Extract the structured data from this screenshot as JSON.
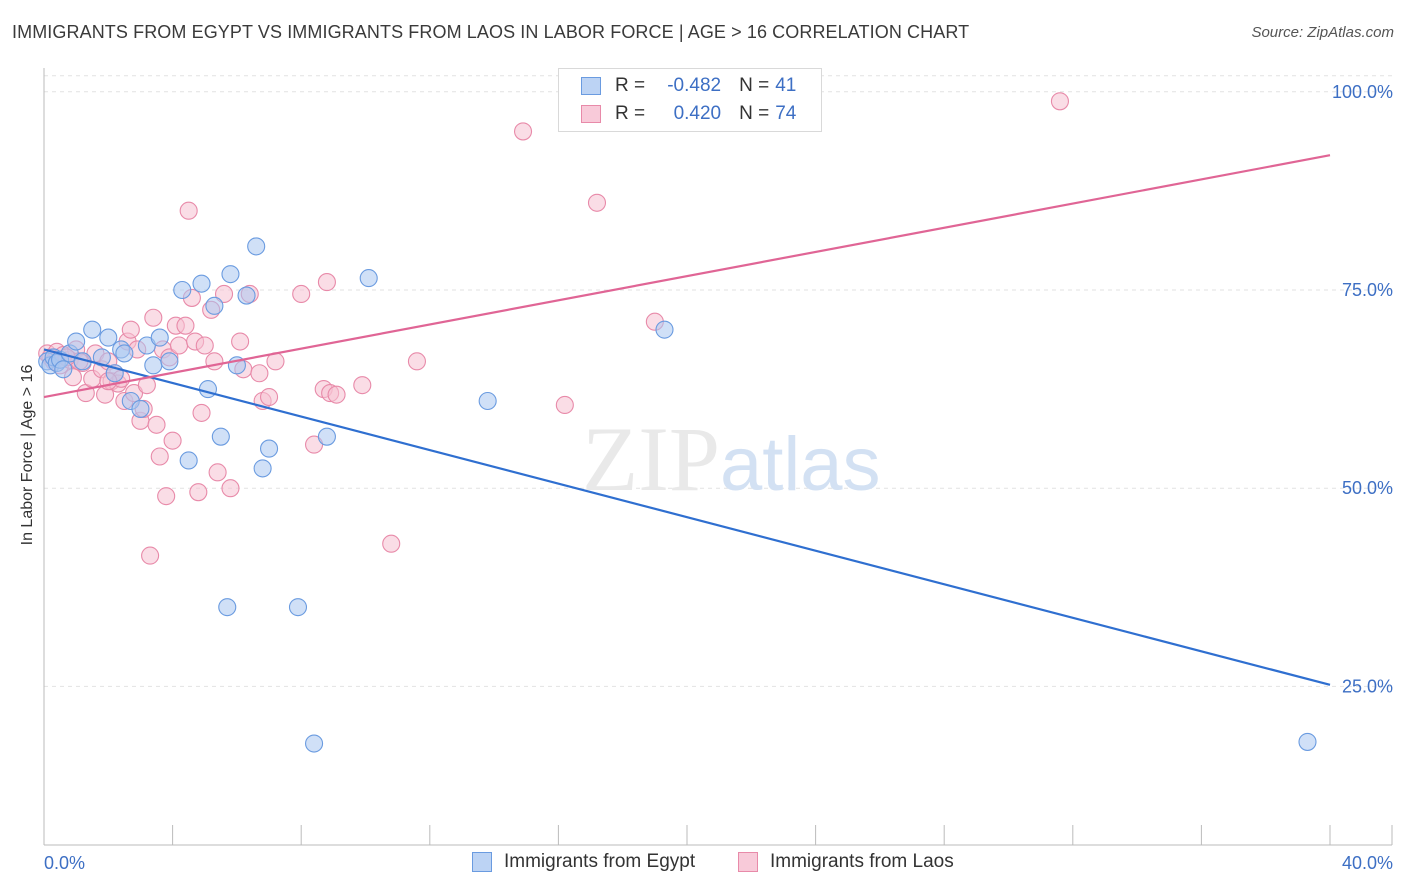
{
  "chart_data": {
    "type": "scatter",
    "title": "IMMIGRANTS FROM EGYPT VS IMMIGRANTS FROM LAOS IN LABOR FORCE | AGE > 16 CORRELATION CHART",
    "source": "Source: ZipAtlas.com",
    "ylabel": "In Labor Force | Age > 16",
    "xlim": [
      0,
      40
    ],
    "ylim": [
      5,
      103
    ],
    "x_tick_labels": [
      "0.0%",
      "40.0%"
    ],
    "y_ticks": [
      25,
      50,
      75,
      100
    ],
    "y_tick_labels": [
      "25.0%",
      "50.0%",
      "75.0%",
      "100.0%"
    ],
    "grid": true,
    "watermark": "ZIPatlas",
    "legend": {
      "egypt": {
        "r_label": "R =",
        "r_value": "-0.482",
        "n_label": "N =",
        "n_value": "41"
      },
      "laos": {
        "r_label": "R =",
        "r_value": "0.420",
        "n_label": "N =",
        "n_value": "74"
      }
    },
    "series": [
      {
        "name": "Immigrants from Egypt",
        "color": "#6a9be0",
        "fill": "#a9c6f0",
        "trend": {
          "x": [
            0,
            40
          ],
          "y": [
            67.5,
            25.2
          ],
          "color": "#2f6fd0"
        },
        "points": [
          [
            0.1,
            66.0
          ],
          [
            0.2,
            65.5
          ],
          [
            0.3,
            66.5
          ],
          [
            0.4,
            65.8
          ],
          [
            0.5,
            66.2
          ],
          [
            0.6,
            65.0
          ],
          [
            0.8,
            67.0
          ],
          [
            1.0,
            68.5
          ],
          [
            1.2,
            66.0
          ],
          [
            1.5,
            70.0
          ],
          [
            1.8,
            66.5
          ],
          [
            2.0,
            69.0
          ],
          [
            2.2,
            64.5
          ],
          [
            2.4,
            67.5
          ],
          [
            2.5,
            67.0
          ],
          [
            2.7,
            61.0
          ],
          [
            3.0,
            60.0
          ],
          [
            3.2,
            68.0
          ],
          [
            3.4,
            65.5
          ],
          [
            3.6,
            69.0
          ],
          [
            3.9,
            66.0
          ],
          [
            4.3,
            75.0
          ],
          [
            4.5,
            53.5
          ],
          [
            4.9,
            75.8
          ],
          [
            5.1,
            62.5
          ],
          [
            5.3,
            73.0
          ],
          [
            5.5,
            56.5
          ],
          [
            5.7,
            35.0
          ],
          [
            5.8,
            77.0
          ],
          [
            6.0,
            65.5
          ],
          [
            6.3,
            74.3
          ],
          [
            6.6,
            80.5
          ],
          [
            6.8,
            52.5
          ],
          [
            7.0,
            55.0
          ],
          [
            7.9,
            35.0
          ],
          [
            8.4,
            17.8
          ],
          [
            8.8,
            56.5
          ],
          [
            10.1,
            76.5
          ],
          [
            13.8,
            61.0
          ],
          [
            19.3,
            70.0
          ],
          [
            39.3,
            18.0
          ]
        ]
      },
      {
        "name": "Immigrants from Laos",
        "color": "#e88aa9",
        "fill": "#f6c1d2",
        "trend": {
          "x": [
            0,
            40
          ],
          "y": [
            61.5,
            92.0
          ],
          "color": "#e06595"
        },
        "points": [
          [
            0.1,
            67.0
          ],
          [
            0.2,
            66.5
          ],
          [
            0.3,
            66.0
          ],
          [
            0.4,
            67.2
          ],
          [
            0.5,
            65.5
          ],
          [
            0.6,
            66.8
          ],
          [
            0.8,
            66.2
          ],
          [
            0.9,
            64.0
          ],
          [
            1.0,
            67.5
          ],
          [
            1.2,
            65.8
          ],
          [
            1.3,
            62.0
          ],
          [
            1.5,
            63.8
          ],
          [
            1.6,
            67.0
          ],
          [
            1.8,
            65.0
          ],
          [
            1.9,
            61.8
          ],
          [
            2.0,
            66.0
          ],
          [
            2.1,
            63.5
          ],
          [
            2.2,
            64.5
          ],
          [
            2.3,
            63.2
          ],
          [
            2.4,
            63.8
          ],
          [
            2.5,
            61.0
          ],
          [
            2.6,
            68.5
          ],
          [
            2.7,
            70.0
          ],
          [
            2.8,
            62.0
          ],
          [
            2.9,
            67.5
          ],
          [
            3.0,
            58.5
          ],
          [
            3.1,
            60.0
          ],
          [
            3.2,
            63.0
          ],
          [
            3.3,
            41.5
          ],
          [
            3.4,
            71.5
          ],
          [
            3.5,
            58.0
          ],
          [
            3.6,
            54.0
          ],
          [
            3.7,
            67.5
          ],
          [
            3.8,
            49.0
          ],
          [
            3.9,
            66.5
          ],
          [
            4.0,
            56.0
          ],
          [
            4.1,
            70.5
          ],
          [
            4.2,
            68.0
          ],
          [
            4.4,
            70.5
          ],
          [
            4.5,
            85.0
          ],
          [
            4.6,
            74.0
          ],
          [
            4.7,
            68.5
          ],
          [
            4.8,
            49.5
          ],
          [
            4.9,
            59.5
          ],
          [
            5.0,
            68.0
          ],
          [
            5.2,
            72.5
          ],
          [
            5.3,
            66.0
          ],
          [
            5.4,
            52.0
          ],
          [
            5.6,
            74.5
          ],
          [
            5.8,
            50.0
          ],
          [
            6.1,
            68.5
          ],
          [
            6.2,
            65.0
          ],
          [
            6.4,
            74.5
          ],
          [
            6.7,
            64.5
          ],
          [
            6.8,
            61.0
          ],
          [
            7.0,
            61.5
          ],
          [
            7.2,
            66.0
          ],
          [
            8.0,
            74.5
          ],
          [
            8.4,
            55.5
          ],
          [
            8.7,
            62.5
          ],
          [
            8.8,
            76.0
          ],
          [
            8.9,
            62.0
          ],
          [
            9.1,
            61.8
          ],
          [
            9.9,
            63.0
          ],
          [
            10.8,
            43.0
          ],
          [
            11.6,
            66.0
          ],
          [
            14.9,
            95.0
          ],
          [
            16.2,
            60.5
          ],
          [
            17.2,
            86.0
          ],
          [
            19.0,
            71.0
          ],
          [
            31.6,
            98.8
          ],
          [
            1.1,
            66.0
          ],
          [
            0.7,
            66.5
          ],
          [
            2.0,
            63.5
          ]
        ]
      }
    ]
  },
  "bottom_legend": {
    "egypt_label": "Immigrants from Egypt",
    "laos_label": "Immigrants from Laos"
  }
}
